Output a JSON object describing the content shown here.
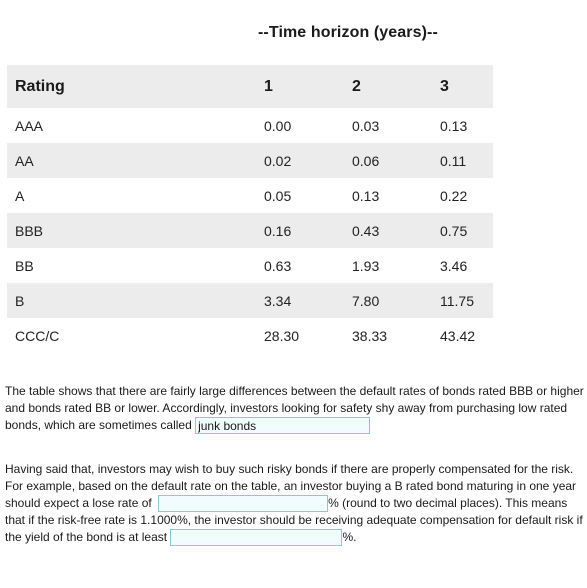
{
  "table": {
    "group_header": "--Time horizon (years)--",
    "columns": [
      "Rating",
      "1",
      "2",
      "3"
    ],
    "rows": [
      {
        "rating": "AAA",
        "y1": "0.00",
        "y2": "0.03",
        "y3": "0.13"
      },
      {
        "rating": "AA",
        "y1": "0.02",
        "y2": "0.06",
        "y3": "0.11"
      },
      {
        "rating": "A",
        "y1": "0.05",
        "y2": "0.13",
        "y3": "0.22"
      },
      {
        "rating": "BBB",
        "y1": "0.16",
        "y2": "0.43",
        "y3": "0.75"
      },
      {
        "rating": "BB",
        "y1": "0.63",
        "y2": "1.93",
        "y3": "3.46"
      },
      {
        "rating": "B",
        "y1": "3.34",
        "y2": "7.80",
        "y3": "11.75"
      },
      {
        "rating": "CCC/C",
        "y1": "28.30",
        "y2": "38.33",
        "y3": "43.42"
      }
    ]
  },
  "paragraph1": {
    "text": "The table shows that there are fairly large differences between the default rates of bonds rated BBB or higher and bonds rated BB or lower.  Accordingly, investors looking for safety shy away from purchasing  low rated bonds, which are sometimes called ",
    "answer_value": "junk bonds"
  },
  "paragraph2": {
    "text_a": "Having said that, investors may wish to buy such risky bonds if there are properly compensated for the risk.  For example, based on the default rate on the table, an investor buying a B rated bond maturing in one year should expect a lose rate of ",
    "answer_loss_value": "",
    "text_b": "% (round to two decimal places).  This means that if the risk-free rate is 1.1000%, the investor should be receiving adequate compensation for default risk if the yield of the bond is at least ",
    "answer_yield_value": "",
    "text_c": "%."
  }
}
